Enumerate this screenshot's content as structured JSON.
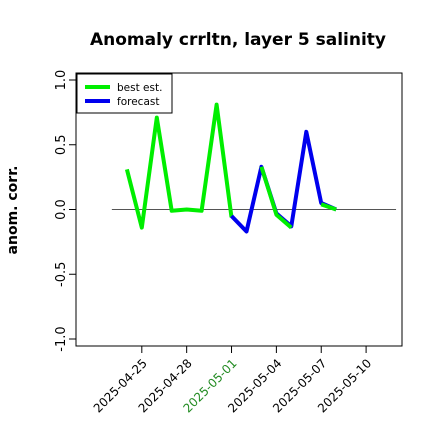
{
  "chart_data": {
    "type": "line",
    "title": "Anomaly crrltn, layer 5 salinity",
    "xlabel": "",
    "ylabel": "anom. corr.",
    "xlim": [
      "2025-04-21",
      "2025-05-12"
    ],
    "ylim": [
      -1.0,
      1.0
    ],
    "y_ticks": [
      "-1.0",
      "-0.5",
      "0.0",
      "0.5",
      "1.0"
    ],
    "x_ticks": [
      {
        "date": "2025-04-25",
        "label": "2025-04-25",
        "color": "#000000"
      },
      {
        "date": "2025-04-28",
        "label": "2025-04-28",
        "color": "#000000"
      },
      {
        "date": "2025-05-01",
        "label": "2025-05-01",
        "color": "#228B22"
      },
      {
        "date": "2025-05-04",
        "label": "2025-05-04",
        "color": "#000000"
      },
      {
        "date": "2025-05-07",
        "label": "2025-05-07",
        "color": "#000000"
      },
      {
        "date": "2025-05-10",
        "label": "2025-05-10",
        "color": "#000000"
      }
    ],
    "reference_line": 0.0,
    "legend_position": "top-left",
    "series": [
      {
        "name": "best est.",
        "color": "#00EE00",
        "points": [
          [
            "2025-04-24",
            0.31
          ],
          [
            "2025-04-25",
            -0.14
          ],
          [
            "2025-04-26",
            0.71
          ],
          [
            "2025-04-27",
            -0.01
          ],
          [
            "2025-04-28",
            0.0
          ],
          [
            "2025-04-29",
            -0.01
          ],
          [
            "2025-04-30",
            0.81
          ],
          [
            "2025-05-01",
            -0.06
          ]
        ]
      },
      {
        "name": "forecast",
        "color": "#0000EE",
        "points": [
          [
            "2025-05-01",
            -0.05
          ],
          [
            "2025-05-02",
            -0.17
          ],
          [
            "2025-05-03",
            0.33
          ],
          [
            "2025-05-04",
            -0.03
          ],
          [
            "2025-05-05",
            -0.13
          ],
          [
            "2025-05-06",
            0.6
          ],
          [
            "2025-05-07",
            0.05
          ],
          [
            "2025-05-08",
            0.0
          ]
        ]
      }
    ],
    "green_overlay_on_forecast": [
      [
        "2025-05-03",
        0.33
      ],
      [
        "2025-05-04",
        -0.04
      ],
      [
        "2025-05-05",
        -0.14
      ]
    ],
    "green_overlay_on_forecast_2": [
      [
        "2025-05-07",
        0.04
      ],
      [
        "2025-05-08",
        0.0
      ]
    ]
  }
}
